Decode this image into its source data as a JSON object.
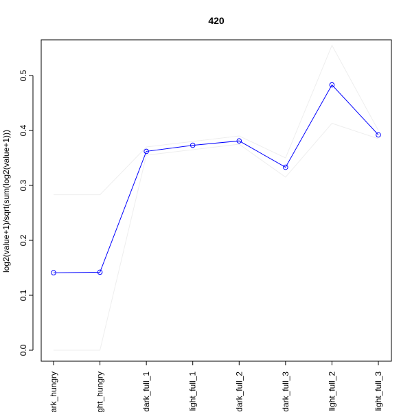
{
  "chart_data": {
    "type": "line",
    "title": "420",
    "xlabel": "",
    "ylabel": "log2(value+1)/sqrt(sum(log2(value+1)))",
    "ylim": [
      -0.02,
      0.565
    ],
    "yticks": [
      0.0,
      0.1,
      0.2,
      0.3,
      0.4,
      0.5
    ],
    "ytick_labels": [
      "0.0",
      "0.1",
      "0.2",
      "0.3",
      "0.4",
      "0.5"
    ],
    "categories": [
      "dark_hungry",
      "light_hungry",
      "dark_full_1",
      "light_full_1",
      "dark_full_2",
      "dark_full_3",
      "light_full_2",
      "light_full_3"
    ],
    "series": [
      {
        "values": [
          0.141,
          0.142,
          0.362,
          0.373,
          0.381,
          0.333,
          0.483,
          0.392
        ],
        "color": "#0000ff",
        "markers": "open-circle"
      },
      {
        "values": [
          0.283,
          0.283,
          0.37,
          0.38,
          0.39,
          0.35,
          0.555,
          0.4
        ],
        "color": "#eeeeee"
      },
      {
        "values": [
          0.0,
          0.0,
          0.355,
          0.365,
          0.375,
          0.315,
          0.413,
          0.385
        ],
        "color": "#eeeeee"
      }
    ],
    "grid": false,
    "legend": "none"
  }
}
